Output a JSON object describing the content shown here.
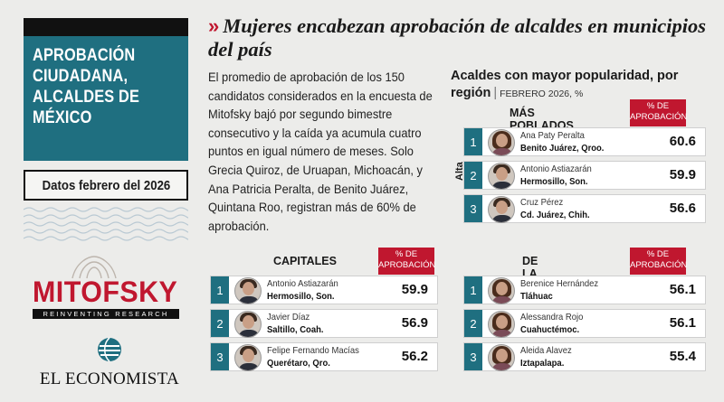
{
  "left": {
    "title": "APROBACIÓN CIUDADANA, ALCALDES DE MÉXICO",
    "date_label": "Datos febrero del 2026",
    "brand_mitofsky": "MITOFSKY",
    "brand_mitofsky_tag": "REINVENTING RESEARCH",
    "brand_economista": "EL ECONOMISTA"
  },
  "headline": {
    "marks": "»",
    "text": "Mujeres encabezan aprobación de alcaldes en municipios del país"
  },
  "body_text": "El promedio de aprobación de los 150 candidatos considerados en la encuesta de Mitofsky bajó por segundo bimestre consecutivo y la caída ya acumula cuatro puntos en igual número de meses. Solo Grecia Quiroz, de Uruapan, Michoacán, y Ana Patricia Peralta, de Benito Juárez, Quintana Roo, registran más de 60% de aprobación.",
  "region": {
    "title": "Acaldes con mayor popularidad, por región",
    "subtitle": "FEBRERO 2026, %",
    "alta_label": "Alta",
    "pct_label": "% DE APROBACIÓN",
    "mas_poblados": {
      "heading": "MÁS POBLADOS",
      "rows": [
        {
          "rank": "1",
          "name": "Ana Paty Peralta",
          "city": "Benito Juárez, Qroo.",
          "value": "60.6",
          "gender": "f"
        },
        {
          "rank": "2",
          "name": "Antonio Astiazarán",
          "city": "Hermosillo, Son.",
          "value": "59.9",
          "gender": "m"
        },
        {
          "rank": "3",
          "name": "Cruz Pérez",
          "city": "Cd. Juárez, Chih.",
          "value": "56.6",
          "gender": "m"
        }
      ]
    },
    "capitales": {
      "heading": "CAPITALES",
      "rows": [
        {
          "rank": "1",
          "name": "Antonio Astiazarán",
          "city": "Hermosillo, Son.",
          "value": "59.9",
          "gender": "m"
        },
        {
          "rank": "2",
          "name": "Javier Díaz",
          "city": "Saltillo, Coah.",
          "value": "56.9",
          "gender": "m"
        },
        {
          "rank": "3",
          "name": "Felipe Fernando Macías",
          "city": "Querétaro, Qro.",
          "value": "56.2",
          "gender": "m"
        }
      ]
    },
    "cdmx": {
      "heading": "DE LA CDMX",
      "rows": [
        {
          "rank": "1",
          "name": "Berenice Hernández",
          "city": "Tláhuac",
          "value": "56.1",
          "gender": "f"
        },
        {
          "rank": "2",
          "name": "Alessandra Rojo",
          "city": "Cuahuctémoc.",
          "value": "56.1",
          "gender": "f"
        },
        {
          "rank": "3",
          "name": "Aleida Alavez",
          "city": "Iztapalapa.",
          "value": "55.4",
          "gender": "f"
        }
      ]
    }
  },
  "colors": {
    "teal": "#1f6f80",
    "red": "#c0172f"
  }
}
